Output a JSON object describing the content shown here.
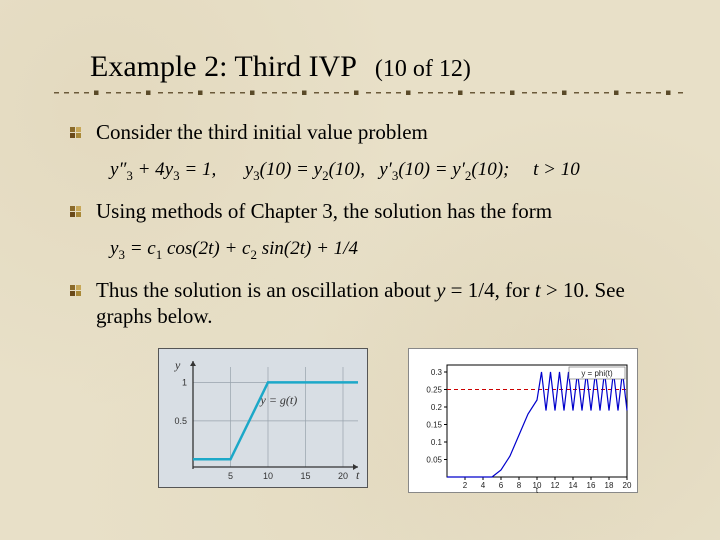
{
  "title": {
    "main": "Example 2: Third IVP",
    "sub": "(10 of 12)"
  },
  "bullets": [
    {
      "text": "Consider the third initial value problem"
    },
    {
      "text": "Using methods of Chapter 3, the solution has the form"
    },
    {
      "text_pre": "Thus the solution is an oscillation about ",
      "y_eq": "y",
      "eq_val": " = 1/4, for ",
      "t_var": "t",
      "post": " > 10. See graphs below."
    }
  ],
  "formula1": {
    "parts": [
      "y″",
      "₃",
      " + 4",
      " y",
      "₃",
      " = 1,      ",
      "y",
      "₃",
      "(10) = ",
      "y",
      "₂",
      "(10),   ",
      "y′",
      "₃",
      "(10) = ",
      "y′",
      "₂",
      "(10);     ",
      "t",
      " > 10"
    ]
  },
  "formula2": "y₃ = c₁ cos(2t) + c₂ sin(2t) + 1/4",
  "underline": {
    "dash_color_dark": "#6b5a3a",
    "dash_color_light": "#b8a98a",
    "square_color": "#5a4a28"
  },
  "bullet_icon": {
    "colors": [
      "#8a6a2a",
      "#c8a858",
      "#6a4a1a",
      "#a88838"
    ]
  },
  "graph_left": {
    "bg": "#d8dee4",
    "axis_color": "#333333",
    "grid_color": "#98a2ac",
    "line_color": "#1ca8c8",
    "line_width": 2.5,
    "x_ticks": [
      5,
      10,
      15,
      20
    ],
    "y_ticks": [
      0.5,
      1
    ],
    "y_label": "y",
    "x_label": "t",
    "series_label": "y = g(t)",
    "xlim": [
      0,
      22
    ],
    "ylim": [
      -0.1,
      1.2
    ],
    "points": [
      [
        0,
        0
      ],
      [
        5,
        0
      ],
      [
        10,
        1
      ],
      [
        22,
        1
      ]
    ]
  },
  "graph_right": {
    "bg": "#ffffff",
    "axis_color": "#000000",
    "line_color": "#0000cc",
    "line_width": 1.2,
    "dash_color": "#cc0000",
    "dash_y": 0.25,
    "title": "y = phi(t)",
    "x_label": "t",
    "x_ticks": [
      2,
      4,
      6,
      8,
      10,
      12,
      14,
      16,
      18,
      20
    ],
    "y_ticks": [
      0.05,
      0.1,
      0.15,
      0.2,
      0.25,
      0.3
    ],
    "xlim": [
      0,
      20
    ],
    "ylim": [
      0,
      0.32
    ],
    "points": [
      [
        0,
        0
      ],
      [
        5,
        0
      ],
      [
        6,
        0.02
      ],
      [
        7,
        0.06
      ],
      [
        8,
        0.12
      ],
      [
        9,
        0.18
      ],
      [
        10,
        0.22
      ],
      [
        10.5,
        0.3
      ],
      [
        11,
        0.19
      ],
      [
        11.5,
        0.3
      ],
      [
        12,
        0.19
      ],
      [
        12.5,
        0.3
      ],
      [
        13,
        0.19
      ],
      [
        13.5,
        0.3
      ],
      [
        14,
        0.19
      ],
      [
        14.5,
        0.3
      ],
      [
        15,
        0.19
      ],
      [
        15.5,
        0.3
      ],
      [
        16,
        0.19
      ],
      [
        16.5,
        0.3
      ],
      [
        17,
        0.19
      ],
      [
        17.5,
        0.3
      ],
      [
        18,
        0.19
      ],
      [
        18.5,
        0.3
      ],
      [
        19,
        0.19
      ],
      [
        19.5,
        0.3
      ],
      [
        20,
        0.19
      ]
    ]
  }
}
